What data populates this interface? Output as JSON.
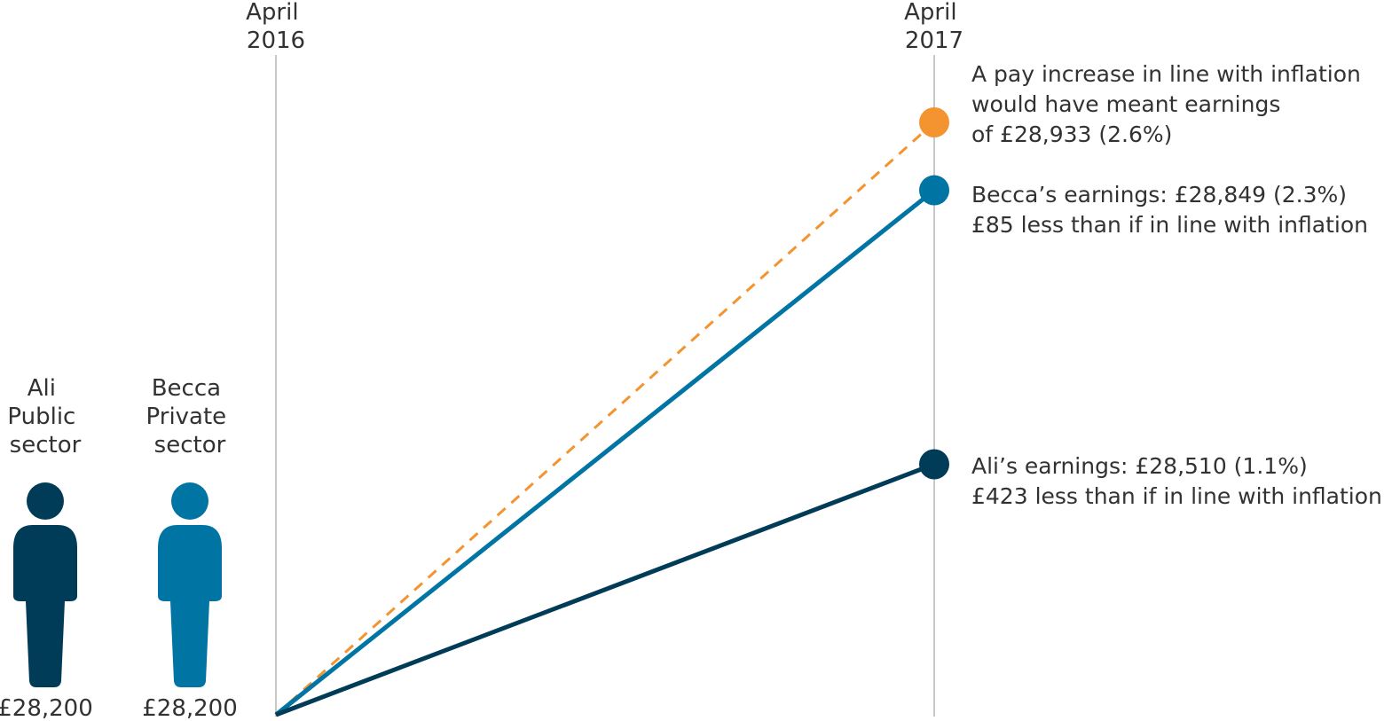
{
  "chart_data": {
    "type": "line",
    "x": [
      "April 2016",
      "April 2017"
    ],
    "x_tick_labels": [
      {
        "line1": "April",
        "line2": "2016"
      },
      {
        "line1": "April",
        "line2": "2017"
      }
    ],
    "ylim": [
      28200,
      28933
    ],
    "grid": "vertical lines at each x tick",
    "series": [
      {
        "key": "inflation",
        "values": [
          28200,
          28933
        ],
        "color": "#f39431",
        "dashed": true,
        "annotation": [
          "A pay increase in line with inflation",
          "would have meant earnings",
          "of £28,933 (2.6%)"
        ]
      },
      {
        "key": "becca",
        "values": [
          28200,
          28849
        ],
        "color": "#0075a3",
        "dashed": false,
        "annotation": [
          "Becca’s earnings: £28,849 (2.3%)",
          "£85 less than if in line with inflation"
        ]
      },
      {
        "key": "ali",
        "values": [
          28200,
          28510
        ],
        "color": "#003c57",
        "dashed": false,
        "annotation": [
          "Ali’s earnings: £28,510 (1.1%)",
          "£423 less than if in line with inflation"
        ]
      }
    ],
    "people": [
      {
        "key": "ali",
        "icon": "person-icon",
        "name": "Ali",
        "sector_line1": "Public",
        "sector_line2": "sector",
        "earnings": "£28,200",
        "color": "#003c57"
      },
      {
        "key": "becca",
        "icon": "person-icon",
        "name": "Becca",
        "sector_line1": "Private",
        "sector_line2": "sector",
        "earnings": "£28,200",
        "color": "#0075a3"
      }
    ],
    "gridline_color": "#c8c8c8"
  }
}
